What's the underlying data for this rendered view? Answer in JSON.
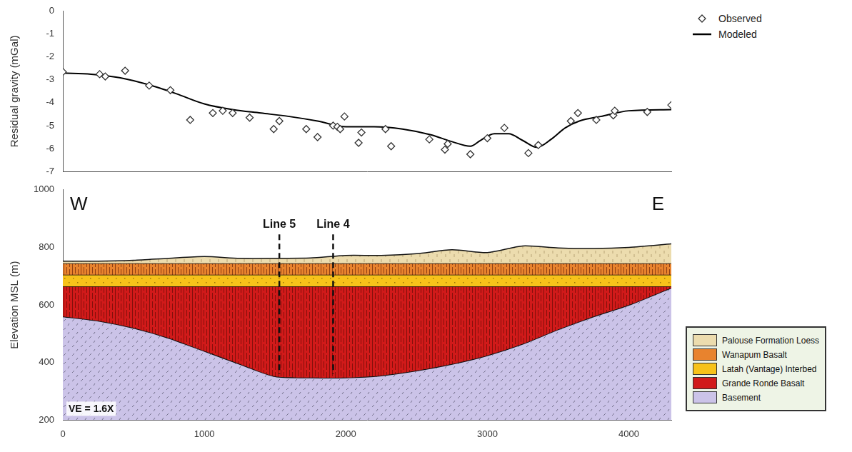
{
  "chart_data": [
    {
      "type": "scatter",
      "y_label": "Residual gravity (mGal)",
      "xlim": [
        0,
        4300
      ],
      "ylim": [
        -7,
        0
      ],
      "yticks": [
        0,
        -1,
        -2,
        -3,
        -4,
        -5,
        -6,
        -7
      ],
      "tick_labels": "y",
      "grid": false,
      "legend": "right",
      "series": [
        {
          "name": "Observed",
          "type": "scatter",
          "marker": "diamond",
          "color": "#333333",
          "x": [
            0,
            260,
            300,
            440,
            610,
            760,
            900,
            1060,
            1130,
            1200,
            1320,
            1490,
            1530,
            1720,
            1800,
            1910,
            1940,
            1960,
            1990,
            2090,
            2110,
            2280,
            2320,
            2590,
            2700,
            2720,
            2880,
            3000,
            3120,
            3290,
            3360,
            3590,
            3640,
            3770,
            3890,
            3900,
            4130,
            4300
          ],
          "values": [
            -2.65,
            -2.75,
            -2.85,
            -2.6,
            -3.25,
            -3.45,
            -4.75,
            -4.45,
            -4.35,
            -4.45,
            -4.65,
            -5.15,
            -4.8,
            -5.15,
            -5.5,
            -5,
            -5.05,
            -5.15,
            -4.6,
            -5.75,
            -5.3,
            -5.15,
            -5.9,
            -5.6,
            -6.05,
            -5.8,
            -6.25,
            -5.55,
            -5.1,
            -6.2,
            -5.85,
            -4.8,
            -4.45,
            -4.75,
            -4.55,
            -4.35,
            -4.4,
            -4.1
          ]
        },
        {
          "name": "Modeled",
          "type": "line",
          "line_style": "solid",
          "color": "#000000",
          "x": [
            0,
            200,
            400,
            600,
            800,
            1000,
            1200,
            1400,
            1600,
            1800,
            2000,
            2200,
            2400,
            2600,
            2750,
            2880,
            2950,
            3050,
            3150,
            3250,
            3350,
            3450,
            3550,
            3650,
            3800,
            4000,
            4300
          ],
          "values": [
            -2.7,
            -2.75,
            -2.9,
            -3.2,
            -3.6,
            -4.05,
            -4.3,
            -4.45,
            -4.6,
            -4.8,
            -5.05,
            -5.05,
            -5.15,
            -5.4,
            -5.7,
            -5.9,
            -5.65,
            -5.35,
            -5.35,
            -5.65,
            -5.95,
            -5.6,
            -5.1,
            -4.8,
            -4.6,
            -4.35,
            -4.3
          ]
        }
      ]
    },
    {
      "type": "area",
      "y_label": "Elevation MSL (m)",
      "x": [
        0,
        250,
        500,
        750,
        1000,
        1250,
        1500,
        1750,
        2000,
        2250,
        2500,
        2750,
        3000,
        3250,
        3500,
        3750,
        4000,
        4300
      ],
      "xlim": [
        0,
        4300
      ],
      "xticks": [
        0,
        1000,
        2000,
        3000,
        4000
      ],
      "ylim": [
        200,
        1000
      ],
      "yticks": [
        200,
        400,
        600,
        800,
        1000
      ],
      "grid": false,
      "legend": "right",
      "series": [
        {
          "name": "Palouse Formation Loess",
          "color": "#ecdcae",
          "values": [
            752,
            752,
            755,
            762,
            768,
            762,
            762,
            763,
            772,
            772,
            778,
            792,
            782,
            805,
            798,
            796,
            800,
            812
          ]
        },
        {
          "name": "Wanapum Basalt",
          "color": "#e8832e",
          "values": [
            745,
            745,
            745,
            745,
            745,
            745,
            745,
            745,
            745,
            745,
            745,
            745,
            745,
            745,
            745,
            745,
            745,
            745
          ]
        },
        {
          "name": "Latah (Vantage) Interbed",
          "color": "#f7c21a",
          "values": [
            705,
            705,
            705,
            705,
            705,
            705,
            705,
            705,
            705,
            705,
            705,
            705,
            705,
            705,
            705,
            705,
            705,
            705
          ]
        },
        {
          "name": "Grande Ronde Basalt",
          "color": "#d11a1a",
          "values": [
            665,
            665,
            665,
            665,
            665,
            665,
            665,
            665,
            665,
            665,
            665,
            665,
            665,
            665,
            665,
            665,
            665,
            665
          ]
        },
        {
          "name": "Basement",
          "color": "#cbc3e8",
          "values": [
            560,
            545,
            520,
            485,
            440,
            395,
            352,
            348,
            348,
            355,
            372,
            395,
            425,
            465,
            515,
            560,
            600,
            660
          ]
        }
      ],
      "annotations": [
        {
          "text": "W",
          "position": "top left"
        },
        {
          "text": "E",
          "position": "top right"
        },
        {
          "text": "VE = 1.6X",
          "position": "bottom left"
        },
        {
          "text": "Line 5",
          "x": 1530
        },
        {
          "text": "Line 4",
          "x": 1910
        }
      ]
    }
  ]
}
